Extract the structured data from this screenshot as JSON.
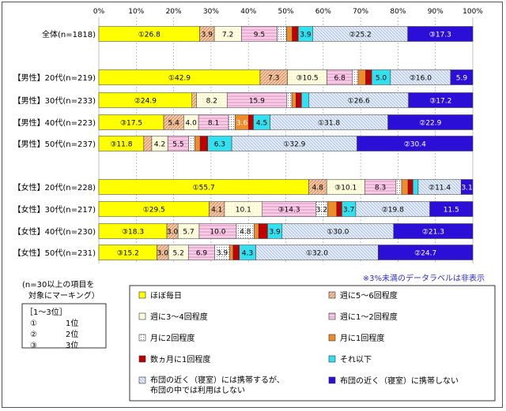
{
  "chart_data": {
    "type": "bar",
    "stacked": true,
    "orientation": "horizontal",
    "percent_scale": true,
    "xlim": [
      0,
      100
    ],
    "x_ticks": [
      "0%",
      "10%",
      "20%",
      "30%",
      "40%",
      "50%",
      "60%",
      "70%",
      "80%",
      "90%",
      "100%"
    ],
    "grid": true,
    "legend_position": "bottom",
    "categories": [
      "全体(n=1818)",
      "【男性】20代(n=219)",
      "【男性】30代(n=233)",
      "【男性】40代(n=223)",
      "【男性】50代(n=237)",
      "【女性】20代(n=228)",
      "【女性】30代(n=217)",
      "【女性】40代(n=230)",
      "【女性】50代(n=231)"
    ],
    "series": [
      {
        "name": "ほぼ毎日",
        "color": "#ffff00",
        "values": [
          26.8,
          42.9,
          24.9,
          17.5,
          11.8,
          55.7,
          29.5,
          18.3,
          15.2
        ],
        "labels": [
          "①26.8",
          "①42.9",
          "②24.9",
          "③17.5",
          "③11.8",
          "①55.7",
          "①29.5",
          "③18.3",
          "③15.2"
        ]
      },
      {
        "name": "週に5～6回程度",
        "color": "#f4c09a",
        "values": [
          3.9,
          7.3,
          1.2,
          5.4,
          2.1,
          4.8,
          4.1,
          3.0,
          3.0
        ],
        "labels": [
          "3.9",
          "7.3",
          "",
          "5.4",
          "",
          "4.8",
          "4.1",
          "3.0",
          "3.0"
        ]
      },
      {
        "name": "週に3～4回程度",
        "color": "#fdfbd2",
        "values": [
          7.2,
          10.5,
          8.2,
          4.0,
          4.2,
          10.1,
          10.1,
          5.7,
          5.2
        ],
        "labels": [
          "7.2",
          "③10.5",
          "8.2",
          "4.0",
          "4.2",
          "③10.1",
          "10.1",
          "5.7",
          "5.2"
        ]
      },
      {
        "name": "週に1～2回程度",
        "color": "#f6c1e4",
        "values": [
          9.5,
          6.8,
          15.9,
          8.1,
          5.5,
          8.3,
          14.3,
          10.0,
          6.9
        ],
        "labels": [
          "9.5",
          "6.8",
          "15.9",
          "8.1",
          "5.5",
          "8.3",
          "③14.3",
          "10.0",
          "6.9"
        ]
      },
      {
        "name": "月に2回程度",
        "color": "#ffffff",
        "values": [
          2.5,
          1.5,
          1.4,
          1.8,
          1.6,
          1.5,
          3.2,
          4.8,
          3.9
        ],
        "labels": [
          "",
          "",
          "",
          "",
          "",
          "",
          "3.2",
          "4.8",
          "3.9"
        ]
      },
      {
        "name": "月に1回程度",
        "color": "#ed8c2b",
        "values": [
          1.5,
          2.0,
          1.1,
          3.6,
          1.4,
          1.7,
          2.4,
          1.2,
          0.9
        ],
        "labels": [
          "",
          "",
          "",
          "3.6",
          "",
          "",
          "",
          "",
          ""
        ]
      },
      {
        "name": "数ヵ月に1回程度",
        "color": "#c00000",
        "values": [
          1.6,
          1.6,
          1.5,
          1.3,
          2.0,
          1.3,
          1.4,
          2.4,
          1.6
        ],
        "labels": [
          "",
          "",
          "",
          "",
          "",
          "",
          "",
          "",
          ""
        ]
      },
      {
        "name": "それ以下",
        "color": "#33e0f0",
        "values": [
          3.9,
          5.0,
          2.0,
          4.5,
          6.3,
          1.4,
          3.7,
          3.9,
          4.3
        ],
        "labels": [
          "3.9",
          "5.0",
          "",
          "4.5",
          "6.3",
          "",
          "3.7",
          "3.9",
          "4.3"
        ]
      },
      {
        "name": "布団の近く（寝室）には携帯するが、布団の中では利用はしない",
        "color": "#dbe6f5",
        "values": [
          25.2,
          16.0,
          26.6,
          31.8,
          32.9,
          11.4,
          19.8,
          30.0,
          32.0
        ],
        "labels": [
          "②25.2",
          "②16.0",
          "①26.6",
          "①31.8",
          "①32.9",
          "②11.4",
          "②19.8",
          "①30.0",
          "①32.0"
        ]
      },
      {
        "name": "布団の近く（寝室）に携帯しない",
        "color": "#2b0fd6",
        "values": [
          17.3,
          5.9,
          17.2,
          22.9,
          30.4,
          3.1,
          11.5,
          21.3,
          24.7
        ],
        "labels": [
          "③17.3",
          "5.9",
          "③17.2",
          "②22.9",
          "②30.4",
          "3.1",
          "11.5",
          "②21.3",
          "②24.7"
        ]
      }
    ]
  },
  "note": "※3%未満のデータラベルは非表示",
  "marking_box": {
    "title_line1": "(n=30以上の項目を",
    "title_line2": "対象にマーキング）",
    "rank_header": "［1～3位］",
    "ranks": [
      {
        "symbol": "①",
        "text": "1位"
      },
      {
        "symbol": "②",
        "text": "2位"
      },
      {
        "symbol": "③",
        "text": "3位"
      }
    ]
  },
  "legend_text": {
    "s8_line1": "布団の近く（寝室）には携帯するが、",
    "s8_line2": "布団の中では利用はしない"
  }
}
